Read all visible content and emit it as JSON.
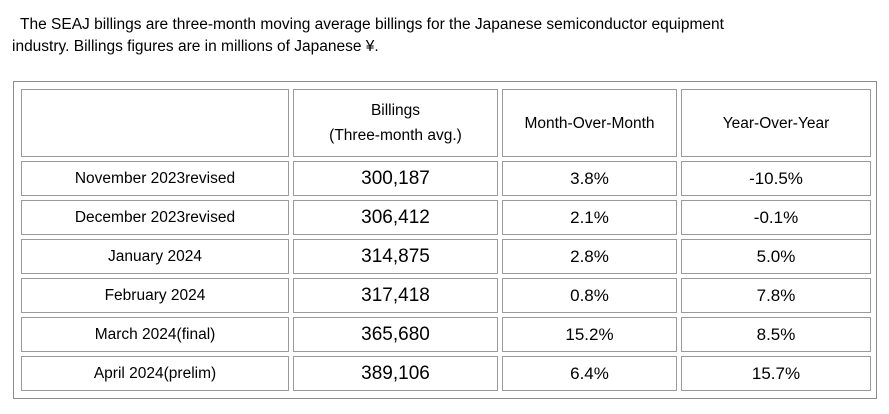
{
  "intro": {
    "line1": "The SEAJ billings are three-month moving average billings for the Japanese semiconductor equipment",
    "line2": "industry. Billings figures are in millions of Japanese ¥."
  },
  "table": {
    "headers": {
      "month": "",
      "billings_line1": "Billings",
      "billings_line2": "(Three-month avg.)",
      "mom": "Month-Over-Month",
      "yoy": "Year-Over-Year"
    },
    "rows": [
      {
        "month": "November 2023revised",
        "billings": "300,187",
        "mom": "3.8%",
        "yoy": "-10.5%"
      },
      {
        "month": "December 2023revised",
        "billings": "306,412",
        "mom": "2.1%",
        "yoy": "-0.1%"
      },
      {
        "month": "January 2024",
        "billings": "314,875",
        "mom": "2.8%",
        "yoy": "5.0%"
      },
      {
        "month": "February 2024",
        "billings": "317,418",
        "mom": "0.8%",
        "yoy": "7.8%"
      },
      {
        "month": "March 2024(final)",
        "billings": "365,680",
        "mom": "15.2%",
        "yoy": "8.5%"
      },
      {
        "month": "April 2024(prelim)",
        "billings": "389,106",
        "mom": "6.4%",
        "yoy": "15.7%"
      }
    ]
  }
}
